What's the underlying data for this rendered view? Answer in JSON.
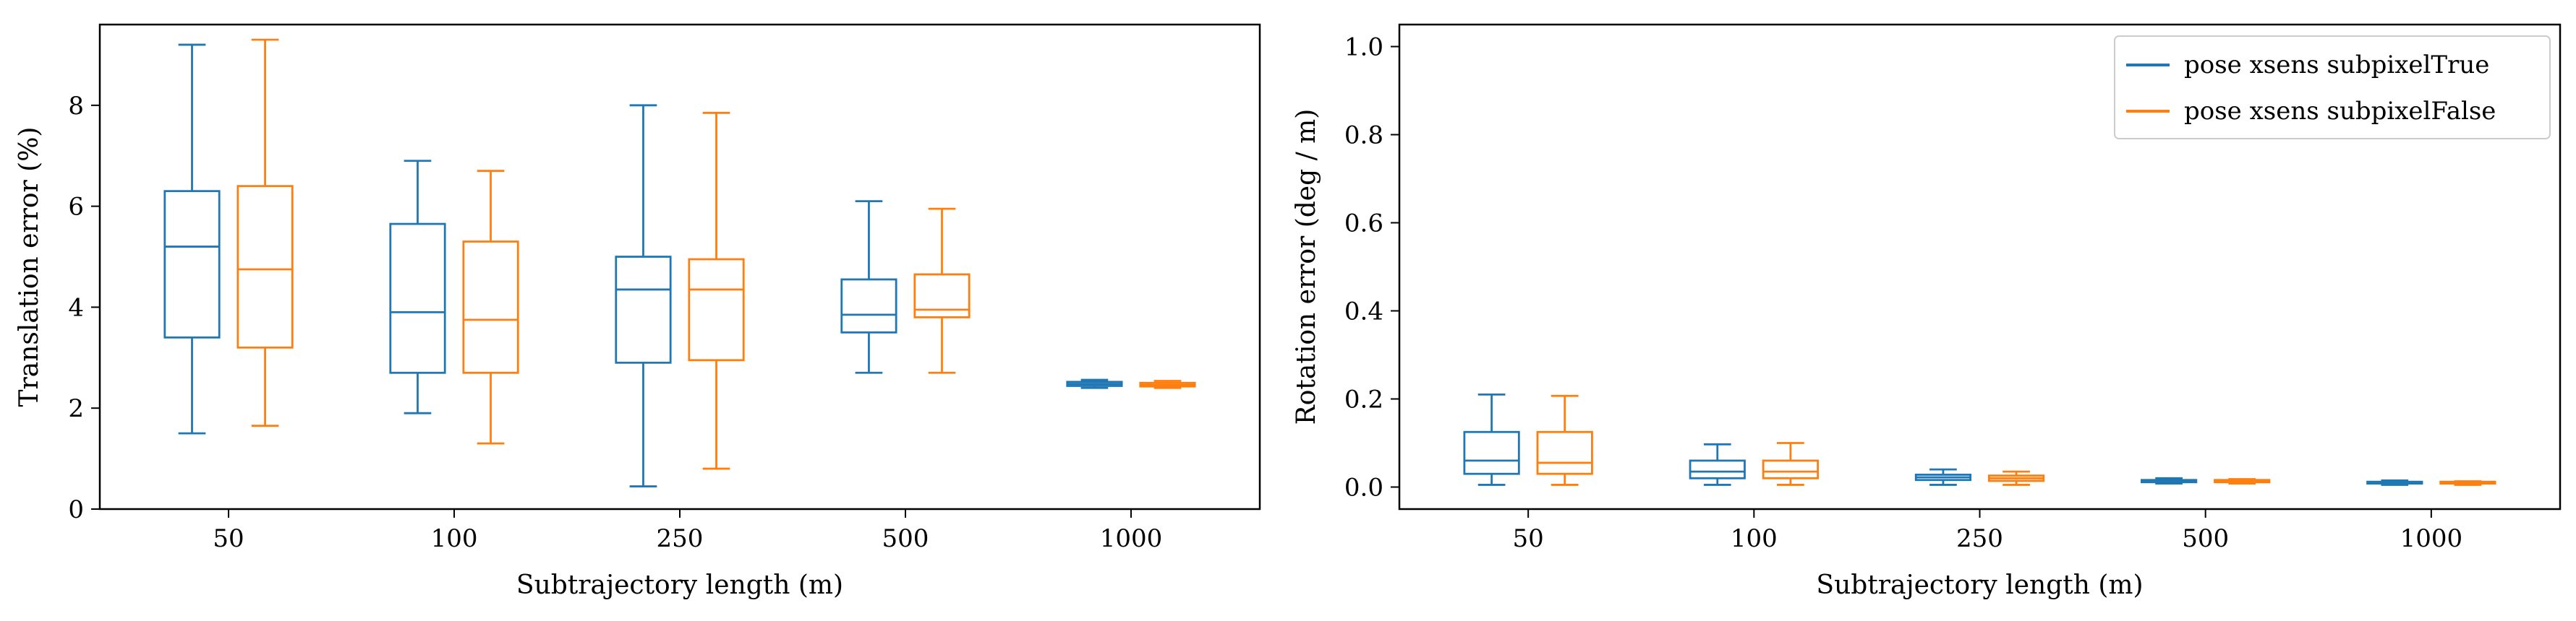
{
  "chart_data": [
    {
      "type": "box",
      "xlabel": "Subtrajectory length (m)",
      "ylabel": "Translation error (%)",
      "categories": [
        "50",
        "100",
        "250",
        "500",
        "1000"
      ],
      "ylim": [
        0,
        9.6
      ],
      "yticks": [
        0,
        2,
        4,
        6,
        8
      ],
      "grid": false,
      "series": [
        {
          "name": "pose xsens subpixelTrue",
          "color": "#1f77b4",
          "boxes": [
            {
              "whisker_low": 1.5,
              "q1": 3.4,
              "median": 5.2,
              "q3": 6.3,
              "whisker_high": 9.2
            },
            {
              "whisker_low": 1.9,
              "q1": 2.7,
              "median": 3.9,
              "q3": 5.65,
              "whisker_high": 6.9
            },
            {
              "whisker_low": 0.45,
              "q1": 2.9,
              "median": 4.35,
              "q3": 5.0,
              "whisker_high": 8.0
            },
            {
              "whisker_low": 2.7,
              "q1": 3.5,
              "median": 3.85,
              "q3": 4.55,
              "whisker_high": 6.1
            },
            {
              "whisker_low": 2.4,
              "q1": 2.44,
              "median": 2.48,
              "q3": 2.52,
              "whisker_high": 2.56
            }
          ]
        },
        {
          "name": "pose xsens subpixelFalse",
          "color": "#ff7f0e",
          "boxes": [
            {
              "whisker_low": 1.65,
              "q1": 3.2,
              "median": 4.75,
              "q3": 6.4,
              "whisker_high": 9.3
            },
            {
              "whisker_low": 1.3,
              "q1": 2.7,
              "median": 3.75,
              "q3": 5.3,
              "whisker_high": 6.7
            },
            {
              "whisker_low": 0.8,
              "q1": 2.95,
              "median": 4.35,
              "q3": 4.95,
              "whisker_high": 7.85
            },
            {
              "whisker_low": 2.7,
              "q1": 3.8,
              "median": 3.95,
              "q3": 4.65,
              "whisker_high": 5.95
            },
            {
              "whisker_low": 2.4,
              "q1": 2.43,
              "median": 2.46,
              "q3": 2.5,
              "whisker_high": 2.54
            }
          ]
        }
      ]
    },
    {
      "type": "box",
      "xlabel": "Subtrajectory length (m)",
      "ylabel": "Rotation error (deg / m)",
      "categories": [
        "50",
        "100",
        "250",
        "500",
        "1000"
      ],
      "ylim": [
        -0.05,
        1.05
      ],
      "yticks": [
        "0.0",
        "0.2",
        "0.4",
        "0.6",
        "0.8",
        "1.0"
      ],
      "grid": false,
      "legend_position": "top-right",
      "series": [
        {
          "name": "pose xsens subpixelTrue",
          "color": "#1f77b4",
          "boxes": [
            {
              "whisker_low": 0.005,
              "q1": 0.03,
              "median": 0.06,
              "q3": 0.125,
              "whisker_high": 0.21
            },
            {
              "whisker_low": 0.005,
              "q1": 0.02,
              "median": 0.035,
              "q3": 0.06,
              "whisker_high": 0.097
            },
            {
              "whisker_low": 0.005,
              "q1": 0.016,
              "median": 0.022,
              "q3": 0.028,
              "whisker_high": 0.04
            },
            {
              "whisker_low": 0.008,
              "q1": 0.011,
              "median": 0.013,
              "q3": 0.016,
              "whisker_high": 0.02
            },
            {
              "whisker_low": 0.005,
              "q1": 0.008,
              "median": 0.01,
              "q3": 0.012,
              "whisker_high": 0.015
            }
          ]
        },
        {
          "name": "pose xsens subpixelFalse",
          "color": "#ff7f0e",
          "boxes": [
            {
              "whisker_low": 0.005,
              "q1": 0.03,
              "median": 0.055,
              "q3": 0.125,
              "whisker_high": 0.207
            },
            {
              "whisker_low": 0.005,
              "q1": 0.02,
              "median": 0.035,
              "q3": 0.06,
              "whisker_high": 0.1
            },
            {
              "whisker_low": 0.005,
              "q1": 0.014,
              "median": 0.02,
              "q3": 0.026,
              "whisker_high": 0.035
            },
            {
              "whisker_low": 0.008,
              "q1": 0.011,
              "median": 0.013,
              "q3": 0.016,
              "whisker_high": 0.018
            },
            {
              "whisker_low": 0.005,
              "q1": 0.008,
              "median": 0.01,
              "q3": 0.012,
              "whisker_high": 0.013
            }
          ]
        }
      ]
    }
  ]
}
